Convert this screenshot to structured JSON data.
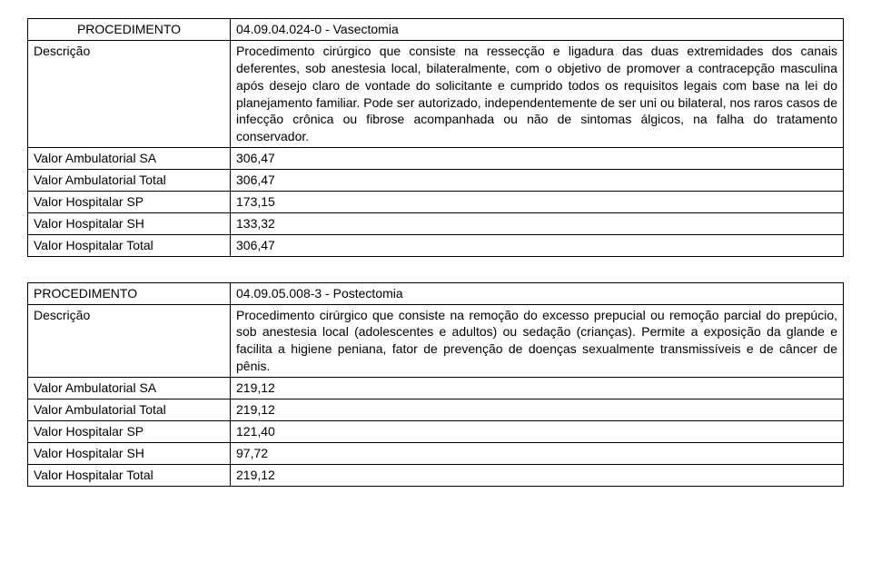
{
  "tables": [
    {
      "rows": [
        {
          "label": "PROCEDIMENTO",
          "label_class": "lbl-proc",
          "value": "04.09.04.024-0 - Vasectomia"
        },
        {
          "label": "Descrição",
          "value_class": "desc",
          "value": "Procedimento cirúrgico que consiste na ressecção e ligadura das duas extremidades dos canais deferentes, sob anestesia local, bilateralmente, com o objetivo de promover a contracepção masculina após desejo claro de vontade do solicitante e cumprido todos os requisitos legais com base na lei do planejamento familiar. Pode ser autorizado, independentemente de ser uni ou bilateral, nos raros casos de infecção crônica ou fibrose acompanhada ou não de sintomas álgicos, na falha do tratamento conservador."
        },
        {
          "label": "Valor Ambulatorial SA",
          "value": "306,47"
        },
        {
          "label": "Valor Ambulatorial Total",
          "value": "306,47"
        },
        {
          "label": "Valor Hospitalar SP",
          "value": "173,15"
        },
        {
          "label": "Valor Hospitalar SH",
          "value": "133,32"
        },
        {
          "label": "Valor Hospitalar Total",
          "value": "306,47"
        }
      ]
    },
    {
      "rows": [
        {
          "label": "PROCEDIMENTO",
          "value": "04.09.05.008-3 - Postectomia"
        },
        {
          "label": "Descrição",
          "value_class": "desc",
          "value": "Procedimento cirúrgico que consiste na remoção do excesso prepucial ou remoção parcial do prepúcio, sob anestesia local (adolescentes e adultos) ou sedação (crianças). Permite a exposição da glande e facilita a higiene peniana, fator de prevenção de doenças sexualmente transmissíveis e de câncer de pênis."
        },
        {
          "label": "Valor Ambulatorial SA",
          "value": "219,12"
        },
        {
          "label": "Valor Ambulatorial Total",
          "value": "219,12"
        },
        {
          "label": "Valor Hospitalar SP",
          "value": "121,40"
        },
        {
          "label": "Valor Hospitalar SH",
          "value": "97,72"
        },
        {
          "label": "Valor Hospitalar Total",
          "value": "219,12"
        }
      ]
    }
  ]
}
